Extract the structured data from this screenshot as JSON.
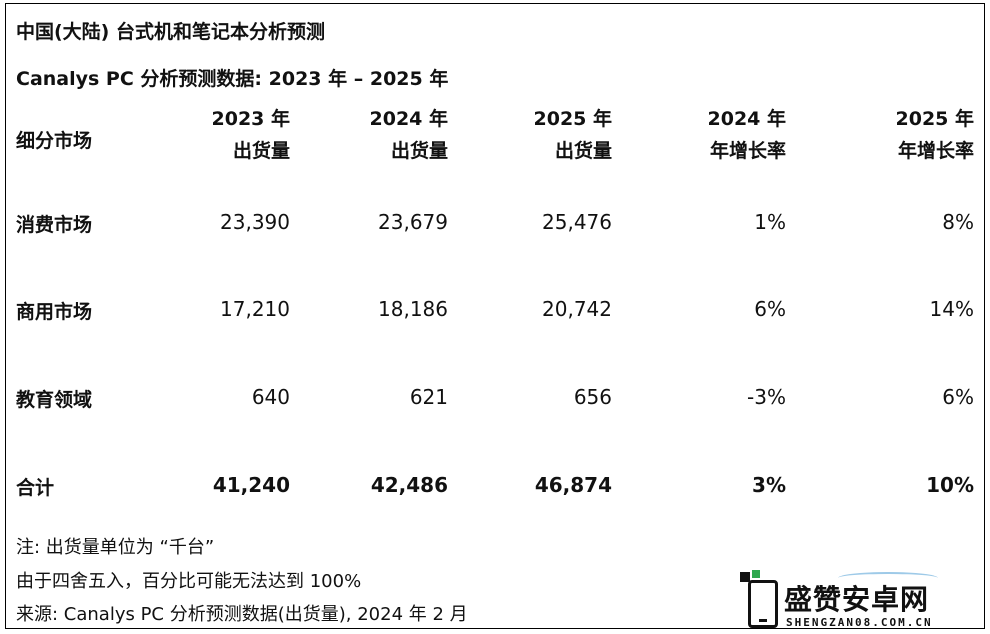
{
  "title": "中国(大陆) 台式机和笔记本分析预测",
  "subtitle": "Canalys PC 分析预测数据: 2023 年 – 2025 年",
  "header": {
    "segment": "细分市场",
    "col1": [
      "2023 年",
      "出货量"
    ],
    "col2": [
      "2024 年",
      "出货量"
    ],
    "col3": [
      "2025 年",
      "出货量"
    ],
    "col4": [
      "2024 年",
      "年增长率"
    ],
    "col5": [
      "2025 年",
      "年增长率"
    ]
  },
  "rows": [
    {
      "label": "消费市场",
      "values": [
        "23,390",
        "23,679",
        "25,476",
        "1%",
        "8%"
      ]
    },
    {
      "label": "商用市场",
      "values": [
        "17,210",
        "18,186",
        "20,742",
        "6%",
        "14%"
      ]
    },
    {
      "label": "教育领域",
      "values": [
        "640",
        "621",
        "656",
        "-3%",
        "6%"
      ]
    },
    {
      "label": "合计",
      "values": [
        "41,240",
        "42,486",
        "46,874",
        "3%",
        "10%"
      ]
    }
  ],
  "notes": [
    "注: 出货量单位为 “千台”",
    "由于四舍五入，百分比可能无法达到 100%",
    "来源: Canalys PC 分析预测数据(出货量), 2024 年 2 月"
  ],
  "watermark": {
    "name": "盛赞安卓网",
    "domain": "SHENGZAN08.COM.CN",
    "colors": {
      "primary": "#111111",
      "accent": "#2fa84f",
      "arc": "#9ecae8"
    }
  }
}
